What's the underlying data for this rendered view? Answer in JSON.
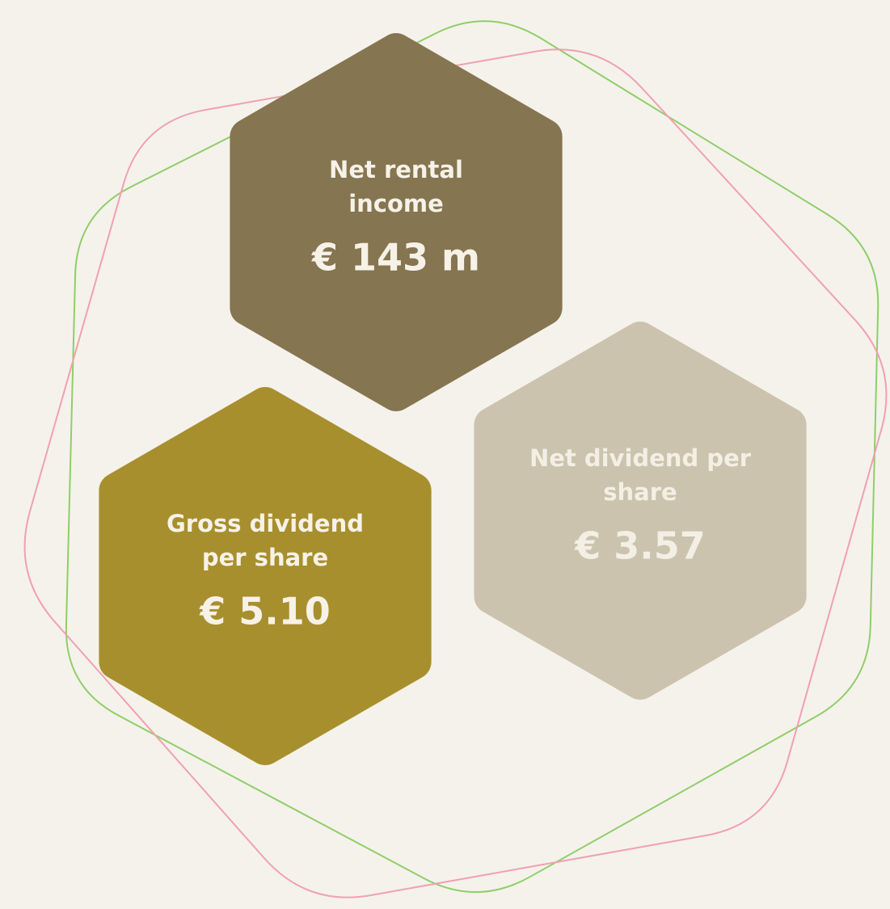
{
  "items": [
    {
      "label": [
        "Net rental",
        "income"
      ],
      "value": "€ 143 m",
      "color": "#857550",
      "text_color": "#f6f2e8"
    },
    {
      "label": [
        "Gross dividend",
        "per share"
      ],
      "value": "€ 5.10",
      "color": "#a88f2e",
      "text_color": "#f6f2e8"
    },
    {
      "label": [
        "Net dividend per",
        "share"
      ],
      "value": "€ 3.57",
      "color": "#cbc3ae",
      "text_color": "#f3efe5"
    }
  ]
}
